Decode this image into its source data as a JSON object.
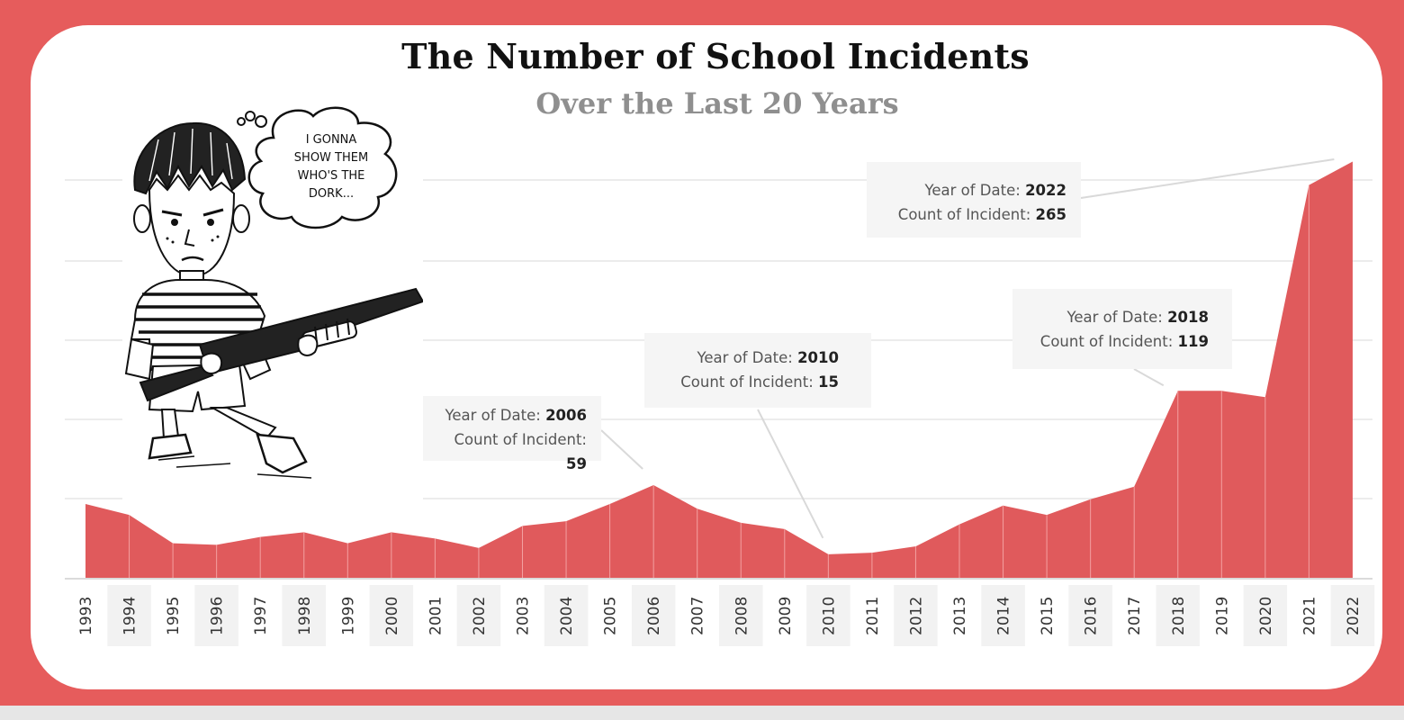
{
  "title": "The Number of School Incidents",
  "subtitle": "Over the Last 20 Years",
  "colors": {
    "frame": "#e65c5c",
    "area": "#e05a5c",
    "card": "#ffffff"
  },
  "cartoon": {
    "thought_bubble_text": [
      "I GONNA",
      "SHOW THEM",
      "WHO'S THE",
      "DORK..."
    ]
  },
  "tooltips": [
    {
      "year_label": "Year of Date:",
      "year": "2006",
      "count_label": "Count of Incident:",
      "count": "59"
    },
    {
      "year_label": "Year of Date:",
      "year": "2010",
      "count_label": "Count of Incident:",
      "count": "15"
    },
    {
      "year_label": "Year of Date:",
      "year": "2018",
      "count_label": "Count of Incident:",
      "count": "119"
    },
    {
      "year_label": "Year of Date:",
      "year": "2022",
      "count_label": "Count of Incident:",
      "count": "265"
    }
  ],
  "chart_data": {
    "type": "area",
    "title": "The Number of School Incidents",
    "subtitle": "Over the Last 20 Years",
    "xlabel": "",
    "ylabel": "",
    "x": [
      "1993",
      "1994",
      "1995",
      "1996",
      "1997",
      "1998",
      "1999",
      "2000",
      "2001",
      "2002",
      "2003",
      "2004",
      "2005",
      "2006",
      "2007",
      "2008",
      "2009",
      "2010",
      "2011",
      "2012",
      "2013",
      "2014",
      "2015",
      "2016",
      "2017",
      "2018",
      "2019",
      "2020",
      "2021",
      "2022"
    ],
    "values": [
      47,
      40,
      22,
      21,
      26,
      29,
      22,
      29,
      25,
      19,
      33,
      36,
      47,
      59,
      44,
      35,
      31,
      15,
      16,
      20,
      34,
      46,
      40,
      50,
      58,
      119,
      119,
      115,
      250,
      265
    ],
    "ylim": [
      0,
      275
    ],
    "grid": true,
    "legend": "none"
  }
}
